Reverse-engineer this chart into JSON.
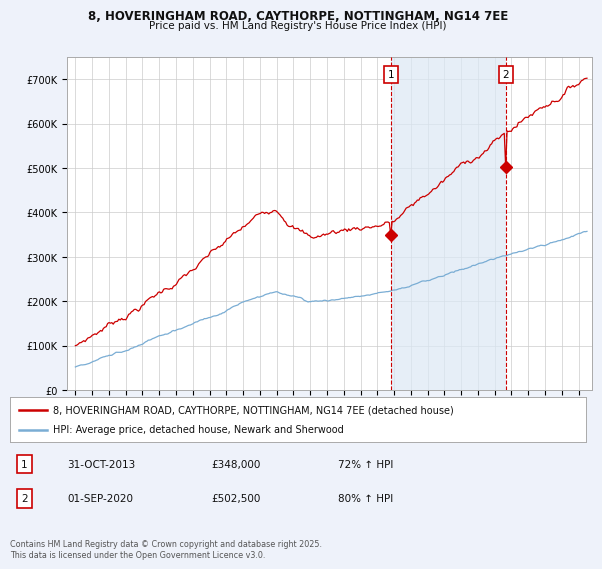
{
  "title_line1": "8, HOVERINGHAM ROAD, CAYTHORPE, NOTTINGHAM, NG14 7EE",
  "title_line2": "Price paid vs. HM Land Registry's House Price Index (HPI)",
  "red_label": "8, HOVERINGHAM ROAD, CAYTHORPE, NOTTINGHAM, NG14 7EE (detached house)",
  "blue_label": "HPI: Average price, detached house, Newark and Sherwood",
  "annotation1_date": "31-OCT-2013",
  "annotation1_price": "£348,000",
  "annotation1_hpi": "72% ↑ HPI",
  "annotation2_date": "01-SEP-2020",
  "annotation2_price": "£502,500",
  "annotation2_hpi": "80% ↑ HPI",
  "footer": "Contains HM Land Registry data © Crown copyright and database right 2025.\nThis data is licensed under the Open Government Licence v3.0.",
  "ylim": [
    0,
    750000
  ],
  "background_color": "#eef2fa",
  "plot_bg_color": "#ffffff",
  "shade_color": "#dce8f5",
  "red_color": "#cc0000",
  "blue_color": "#7aadd4",
  "vline_color": "#cc0000",
  "marker1_year": 2013.83,
  "marker1_red_val": 348000,
  "marker2_year": 2020.67,
  "marker2_red_val": 502500,
  "yticks": [
    0,
    100000,
    200000,
    300000,
    400000,
    500000,
    600000,
    700000
  ],
  "ytick_labels": [
    "£0",
    "£100K",
    "£200K",
    "£300K",
    "£400K",
    "£500K",
    "£600K",
    "£700K"
  ]
}
